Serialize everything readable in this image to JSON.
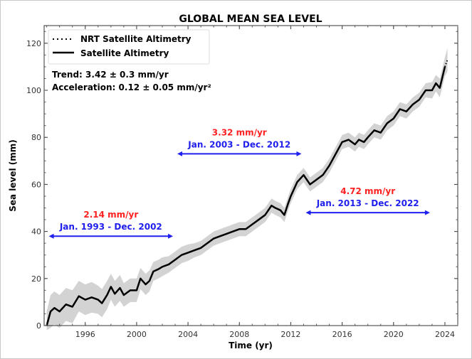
{
  "chart_data": {
    "type": "line",
    "title": "GLOBAL MEAN SEA LEVEL",
    "xlabel": "Time (yr)",
    "ylabel": "Sea level (mm)",
    "xlim": [
      1992.8,
      2025.0
    ],
    "ylim": [
      0,
      127.5
    ],
    "xticks": [
      1996,
      2000,
      2004,
      2008,
      2012,
      2016,
      2020,
      2024
    ],
    "yticks": [
      0,
      20,
      40,
      60,
      80,
      100,
      120
    ],
    "grid": false,
    "legend": {
      "placement": "top-left",
      "entries": [
        {
          "label": "NRT Satellite Altimetry",
          "style": "dotted"
        },
        {
          "label": "Satellite Altimetry",
          "style": "solid"
        }
      ]
    },
    "annotations_text": {
      "trend": "Trend: 3.42 ± 0.3 mm/yr",
      "acceleration": "Acceleration: 0.12 ± 0.05 mm/yr²"
    },
    "periods": [
      {
        "rate": "2.14 mm/yr",
        "range": "Jan. 1993 - Dec. 2002",
        "start": 1993.0,
        "end": 2003.0,
        "y": 38
      },
      {
        "rate": "3.32 mm/yr",
        "range": "Jan. 2003 - Dec. 2012",
        "start": 2003.0,
        "end": 2013.0,
        "y": 73
      },
      {
        "rate": "4.72 mm/yr",
        "range": "Jan. 2013 - Dec. 2022",
        "start": 2013.0,
        "end": 2023.0,
        "y": 48
      }
    ],
    "colors": {
      "line": "#000000",
      "band": "#d3d3d3",
      "rate": "#ff2020",
      "range": "#2020ee"
    },
    "series": [
      {
        "style": "solid",
        "points": [
          [
            1993.0,
            0,
            6
          ],
          [
            1993.3,
            6,
            7
          ],
          [
            1993.6,
            7.5,
            7
          ],
          [
            1994.0,
            6,
            7
          ],
          [
            1994.5,
            9,
            7
          ],
          [
            1995.0,
            8,
            7
          ],
          [
            1995.5,
            12.5,
            6.5
          ],
          [
            1996.0,
            11,
            6.5
          ],
          [
            1996.5,
            12,
            6.5
          ],
          [
            1997.0,
            11,
            6
          ],
          [
            1997.3,
            9.5,
            6
          ],
          [
            1997.7,
            13,
            6
          ],
          [
            1998.0,
            16.5,
            5.5
          ],
          [
            1998.3,
            13.5,
            5.5
          ],
          [
            1998.7,
            16,
            5.5
          ],
          [
            1999.0,
            13,
            5
          ],
          [
            1999.5,
            15,
            5
          ],
          [
            2000.0,
            15,
            5
          ],
          [
            2000.3,
            20,
            4.5
          ],
          [
            2000.7,
            17.5,
            4.5
          ],
          [
            2001.0,
            19,
            4.5
          ],
          [
            2001.3,
            23,
            4
          ],
          [
            2001.7,
            24,
            4
          ],
          [
            2002.0,
            25,
            4
          ],
          [
            2002.5,
            26,
            3.5
          ],
          [
            2003.0,
            28,
            3.5
          ],
          [
            2003.5,
            30,
            3.5
          ],
          [
            2004.0,
            31,
            3.5
          ],
          [
            2004.5,
            32,
            3
          ],
          [
            2005.0,
            33,
            3
          ],
          [
            2005.5,
            35,
            3
          ],
          [
            2006.0,
            37,
            3
          ],
          [
            2006.5,
            38,
            3
          ],
          [
            2007.0,
            39,
            3
          ],
          [
            2007.5,
            40,
            3
          ],
          [
            2008.0,
            41,
            3
          ],
          [
            2008.5,
            41,
            3
          ],
          [
            2009.0,
            43,
            3
          ],
          [
            2009.5,
            45,
            3
          ],
          [
            2010.0,
            47,
            3
          ],
          [
            2010.5,
            51,
            3
          ],
          [
            2010.8,
            50,
            3
          ],
          [
            2011.2,
            49,
            3
          ],
          [
            2011.5,
            47,
            3
          ],
          [
            2011.8,
            52,
            3
          ],
          [
            2012.0,
            55,
            3
          ],
          [
            2012.5,
            61,
            3
          ],
          [
            2013.0,
            64,
            3
          ],
          [
            2013.5,
            60,
            3
          ],
          [
            2014.0,
            62,
            3
          ],
          [
            2014.5,
            64,
            3
          ],
          [
            2015.0,
            68,
            3
          ],
          [
            2015.5,
            73,
            3
          ],
          [
            2016.0,
            78,
            3
          ],
          [
            2016.5,
            79,
            3
          ],
          [
            2017.0,
            77,
            3
          ],
          [
            2017.3,
            79,
            3
          ],
          [
            2017.7,
            78,
            3
          ],
          [
            2018.0,
            80,
            3
          ],
          [
            2018.5,
            83,
            3
          ],
          [
            2019.0,
            82,
            3
          ],
          [
            2019.5,
            86,
            3
          ],
          [
            2020.0,
            88,
            3
          ],
          [
            2020.5,
            92,
            3
          ],
          [
            2021.0,
            91,
            3
          ],
          [
            2021.5,
            94,
            3
          ],
          [
            2022.0,
            96,
            3
          ],
          [
            2022.5,
            100,
            3
          ],
          [
            2023.0,
            100,
            3.5
          ],
          [
            2023.3,
            103,
            3.5
          ],
          [
            2023.6,
            101,
            4
          ],
          [
            2024.0,
            110,
            4
          ]
        ]
      },
      {
        "style": "dotted",
        "points": [
          [
            2024.0,
            110,
            4
          ],
          [
            2024.2,
            113,
            5
          ]
        ]
      }
    ]
  }
}
